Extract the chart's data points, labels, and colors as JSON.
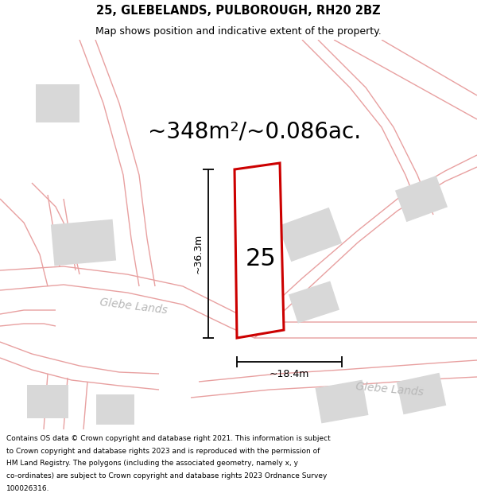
{
  "title": "25, GLEBELANDS, PULBOROUGH, RH20 2BZ",
  "subtitle": "Map shows position and indicative extent of the property.",
  "area_text": "~348m²/~0.086ac.",
  "dim_width": "~18.4m",
  "dim_height": "~36.3m",
  "road_label1": "Glebe Lands",
  "road_label2": "Glebe Lands",
  "property_number": "25",
  "footer": "Contains OS data © Crown copyright and database right 2021. This information is subject to Crown copyright and database rights 2023 and is reproduced with the permission of HM Land Registry. The polygons (including the associated geometry, namely x, y co-ordinates) are subject to Crown copyright and database rights 2023 Ordnance Survey 100026316.",
  "bg_color": "#ffffff",
  "map_bg": "#ffffff",
  "outline_color": "#e8a0a0",
  "property_outline_color": "#cc0000",
  "building_fill": "#d8d8d8",
  "text_color": "#000000",
  "road_text_color": "#b8b8b8",
  "title_fontsize": 10.5,
  "subtitle_fontsize": 9,
  "area_fontsize": 20,
  "property_fontsize": 22,
  "road_fontsize": 10,
  "dim_fontsize": 9,
  "footer_fontsize": 6.5
}
